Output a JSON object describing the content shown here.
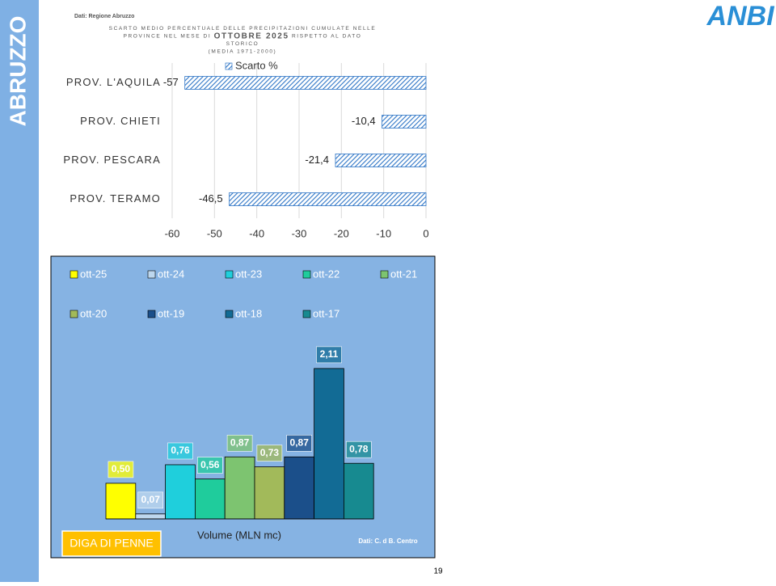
{
  "header": {
    "region": "ABRUZZO",
    "logo": "ANBI",
    "page_number": "19"
  },
  "chart_data": [
    {
      "type": "hbar",
      "source": "Dati: Regione Abruzzo",
      "title": [
        [
          "SCARTO MEDIO PERCENTUALE DELLE PRECIPITAZIONI CUMULATE NELLE"
        ],
        [
          "PROVINCE NEL MESE DI ",
          "OTTOBRE 2025",
          " RISPETTO AL DATO"
        ],
        [
          "STORICO"
        ],
        [
          "(MEDIA 1971-2000)"
        ]
      ],
      "categories": [
        "PROV. L'AQUILA",
        "PROV. CHIETI",
        "PROV. PESCARA",
        "PROV. TERAMO"
      ],
      "series": [
        {
          "name": "Scarto %",
          "color": "#2e75c6",
          "values": [
            -57,
            -10.4,
            -21.4,
            -46.5
          ],
          "value_labels": [
            "-57",
            "-10,4",
            "-21,4",
            "-46,5"
          ]
        }
      ],
      "xlim": [
        -60,
        0
      ],
      "xticks": [
        -60,
        -50,
        -40,
        -30,
        -20,
        -10,
        0
      ],
      "grid": true
    },
    {
      "type": "bar",
      "source": "Dati: C. d B. Centro",
      "x_label": "Volume (MLN mc)",
      "badge": "DIGA DI PENNE",
      "categories": [
        "ott-25",
        "ott-24",
        "ott-23",
        "ott-22",
        "ott-21",
        "ott-20",
        "ott-19",
        "ott-18",
        "ott-17"
      ],
      "values": [
        0.5,
        0.07,
        0.76,
        0.56,
        0.87,
        0.73,
        0.87,
        2.11,
        0.78
      ],
      "value_labels": [
        "0,50",
        "0,07",
        "0,76",
        "0,56",
        "0,87",
        "0,73",
        "0,87",
        "2,11",
        "0,78"
      ],
      "colors": [
        "#ffff00",
        "#bdd7ee",
        "#1fcfdc",
        "#1fcc9c",
        "#7dc470",
        "#a2ba5a",
        "#1b4f8a",
        "#126b95",
        "#178a90"
      ]
    }
  ]
}
